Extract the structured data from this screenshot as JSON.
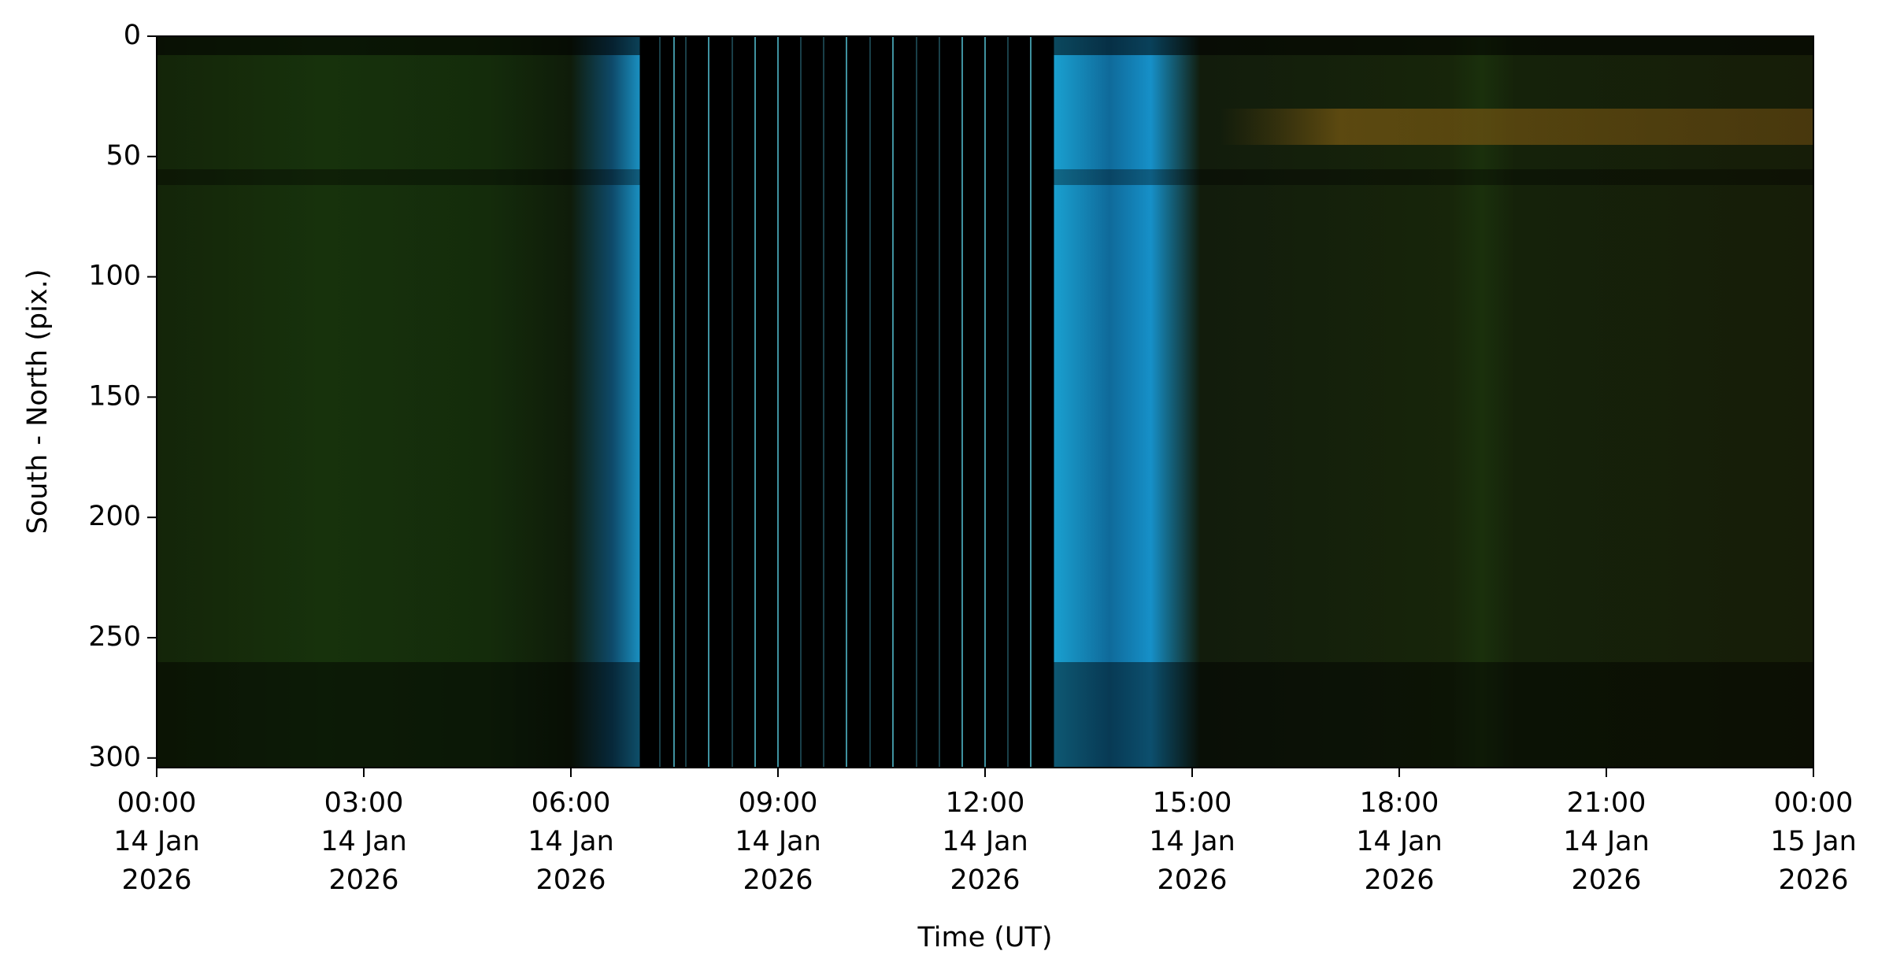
{
  "chart_data": {
    "type": "image",
    "xlabel": "Time (UT)",
    "ylabel": "South - North (pix.)",
    "xlim": [
      0,
      24
    ],
    "xticks": [
      {
        "value": 0,
        "label": [
          "00:00",
          "14 Jan",
          "2026"
        ]
      },
      {
        "value": 3,
        "label": [
          "03:00",
          "14 Jan",
          "2026"
        ]
      },
      {
        "value": 6,
        "label": [
          "06:00",
          "14 Jan",
          "2026"
        ]
      },
      {
        "value": 9,
        "label": [
          "09:00",
          "14 Jan",
          "2026"
        ]
      },
      {
        "value": 12,
        "label": [
          "12:00",
          "14 Jan",
          "2026"
        ]
      },
      {
        "value": 15,
        "label": [
          "15:00",
          "14 Jan",
          "2026"
        ]
      },
      {
        "value": 18,
        "label": [
          "18:00",
          "14 Jan",
          "2026"
        ]
      },
      {
        "value": 21,
        "label": [
          "21:00",
          "14 Jan",
          "2026"
        ]
      },
      {
        "value": 24,
        "label": [
          "00:00",
          "15 Jan",
          "2026"
        ]
      }
    ],
    "ylim": [
      304,
      0
    ],
    "yticks": [
      0,
      50,
      100,
      150,
      200,
      250,
      300
    ]
  }
}
